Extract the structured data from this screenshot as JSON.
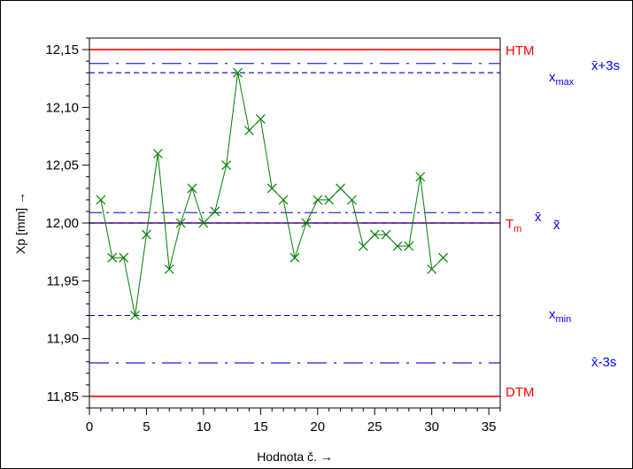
{
  "chart_data": {
    "type": "line",
    "title": "",
    "xlabel": "Hodnota č. →",
    "ylabel": "Xp [mm] →",
    "xlim": [
      0,
      36
    ],
    "ylim": [
      11.84,
      12.16
    ],
    "grid": false,
    "x_ticks": [
      0,
      5,
      10,
      15,
      20,
      25,
      30,
      35
    ],
    "y_ticks": [
      {
        "value": 11.85,
        "label": "11,85"
      },
      {
        "value": 11.9,
        "label": "11,90"
      },
      {
        "value": 11.95,
        "label": "11,95"
      },
      {
        "value": 12.0,
        "label": "12,00"
      },
      {
        "value": 12.05,
        "label": "12,05"
      },
      {
        "value": 12.1,
        "label": "12,10"
      },
      {
        "value": 12.15,
        "label": "12,15"
      }
    ],
    "series": [
      {
        "marker": "x",
        "color": "#008000",
        "x": [
          1,
          2,
          3,
          4,
          5,
          6,
          7,
          8,
          9,
          10,
          11,
          12,
          13,
          14,
          15,
          16,
          17,
          18,
          19,
          20,
          21,
          22,
          23,
          24,
          25,
          26,
          27,
          28,
          29,
          30,
          31
        ],
        "values": [
          12.02,
          11.97,
          11.97,
          11.92,
          11.99,
          12.06,
          11.96,
          12.0,
          12.03,
          12.0,
          12.01,
          12.05,
          12.13,
          12.08,
          12.09,
          12.03,
          12.02,
          11.97,
          12.0,
          12.02,
          12.02,
          12.03,
          12.02,
          11.98,
          11.99,
          11.99,
          11.98,
          11.98,
          12.04,
          11.96,
          11.97
        ]
      }
    ],
    "reference_lines": [
      {
        "id": "htm",
        "value": 12.15,
        "color": "#ff0000",
        "style": "solid",
        "label": "HTM",
        "label_color": "#ff0000"
      },
      {
        "id": "x-plus-3s",
        "value": 12.138,
        "color": "#0000cc",
        "style": "longdash",
        "label": "x̄+3s",
        "label_color": "#0000ff"
      },
      {
        "id": "xmax",
        "value": 12.13,
        "color": "#0000cc",
        "style": "shortdash",
        "label": "xmax",
        "label_color": "#0000ff"
      },
      {
        "id": "x-mean",
        "value": 12.009,
        "color": "#0000cc",
        "style": "dashdot",
        "label": "x̄",
        "label_color": "#0000ff"
      },
      {
        "id": "tm",
        "value": 12.0,
        "color": "#800080",
        "style": "solid",
        "label": "Tm",
        "label_color": "#ff0000"
      },
      {
        "id": "median",
        "value": 12.0,
        "color": "#000080",
        "style": "dash",
        "label": "x̃",
        "label_color": "#0000ff"
      },
      {
        "id": "xmin",
        "value": 11.92,
        "color": "#0000cc",
        "style": "shortdash",
        "label": "xmin",
        "label_color": "#0000ff"
      },
      {
        "id": "x-minus-3s",
        "value": 11.879,
        "color": "#0000cc",
        "style": "longdash",
        "label": "x̄-3s",
        "label_color": "#0000ff"
      },
      {
        "id": "dtm",
        "value": 11.85,
        "color": "#ff0000",
        "style": "solid",
        "label": "DTM",
        "label_color": "#ff0000"
      }
    ]
  }
}
